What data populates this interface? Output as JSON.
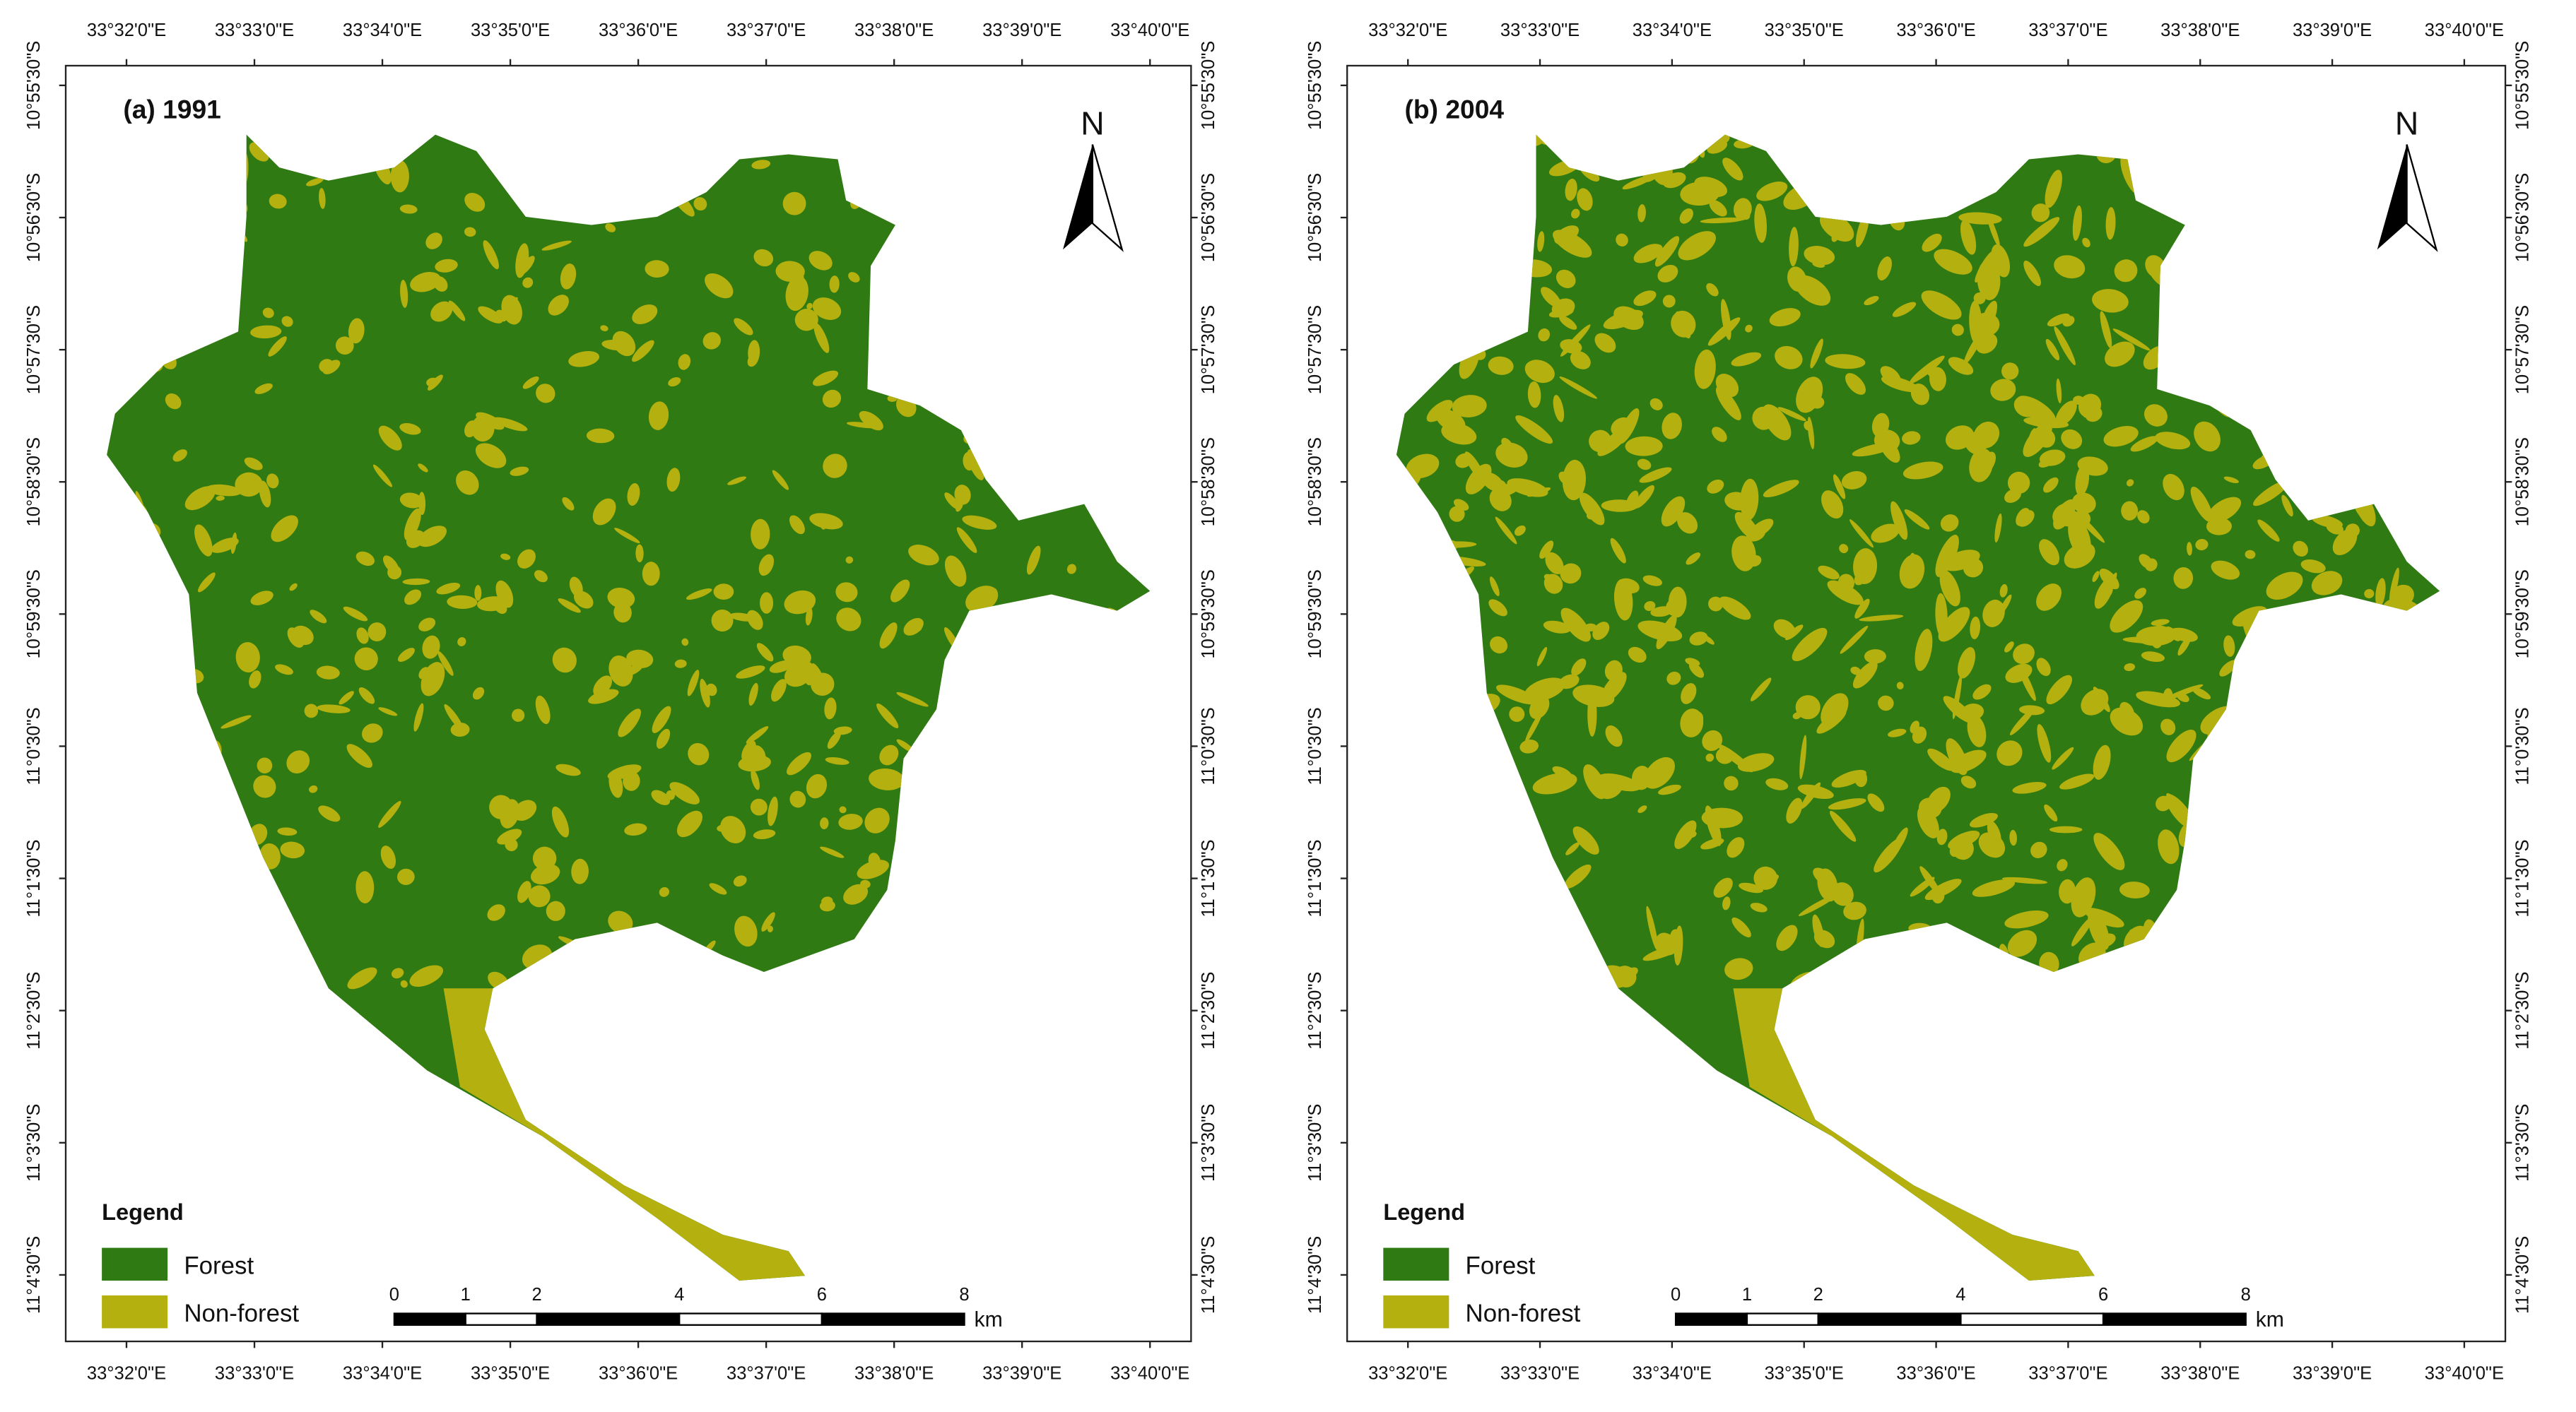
{
  "panels": [
    {
      "title": "(a) 1991",
      "top_labels": [
        "33°32'0\"E",
        "33°33'0\"E",
        "33°34'0\"E",
        "33°35'0\"E",
        "33°36'0\"E",
        "33°37'0\"E",
        "33°38'0\"E",
        "33°39'0\"E",
        "33°40'0\"E"
      ],
      "bottom_labels": [
        "33°32'0\"E",
        "33°33'0\"E",
        "33°34'0\"E",
        "33°35'0\"E",
        "33°36'0\"E",
        "33°37'0\"E",
        "33°38'0\"E",
        "33°39'0\"E",
        "33°40'0\"E"
      ],
      "left_labels": [
        "10°55'30\"S",
        "10°56'30\"S",
        "10°57'30\"S",
        "10°58'30\"S",
        "10°59'30\"S",
        "11°0'30\"S",
        "11°1'30\"S",
        "11°2'30\"S",
        "11°3'30\"S",
        "11°4'30\"S"
      ],
      "right_labels": [
        "10°55'30\"S",
        "10°56'30\"S",
        "10°57'30\"S",
        "10°58'30\"S",
        "10°59'30\"S",
        "11°0'30\"S",
        "11°1'30\"S",
        "11°2'30\"S",
        "11°3'30\"S",
        "11°4'30\"S"
      ],
      "north": "N",
      "legend": {
        "title": "Legend",
        "items": [
          {
            "label": "Forest",
            "color": "#2f7a12"
          },
          {
            "label": "Non-forest",
            "color": "#b3b00f"
          }
        ]
      },
      "scale": {
        "ticks": [
          0,
          1,
          2,
          4,
          6,
          8
        ],
        "unit": "km"
      }
    },
    {
      "title": "(b) 2004",
      "top_labels": [
        "33°32'0\"E",
        "33°33'0\"E",
        "33°34'0\"E",
        "33°35'0\"E",
        "33°36'0\"E",
        "33°37'0\"E",
        "33°38'0\"E",
        "33°39'0\"E",
        "33°40'0\"E"
      ],
      "bottom_labels": [
        "33°32'0\"E",
        "33°33'0\"E",
        "33°34'0\"E",
        "33°35'0\"E",
        "33°36'0\"E",
        "33°37'0\"E",
        "33°38'0\"E",
        "33°39'0\"E",
        "33°40'0\"E"
      ],
      "left_labels": [
        "10°55'30\"S",
        "10°56'30\"S",
        "10°57'30\"S",
        "10°58'30\"S",
        "10°59'30\"S",
        "11°0'30\"S",
        "11°1'30\"S",
        "11°2'30\"S",
        "11°3'30\"S",
        "11°4'30\"S"
      ],
      "right_labels": [
        "10°55'30\"S",
        "10°56'30\"S",
        "10°57'30\"S",
        "10°58'30\"S",
        "10°59'30\"S",
        "11°0'30\"S",
        "11°1'30\"S",
        "11°2'30\"S",
        "11°3'30\"S",
        "11°4'30\"S"
      ],
      "north": "N",
      "legend": {
        "title": "Legend",
        "items": [
          {
            "label": "Forest",
            "color": "#2f7a12"
          },
          {
            "label": "Non-forest",
            "color": "#b3b00f"
          }
        ]
      },
      "scale": {
        "ticks": [
          0,
          1,
          2,
          4,
          6,
          8
        ],
        "unit": "km"
      }
    }
  ]
}
